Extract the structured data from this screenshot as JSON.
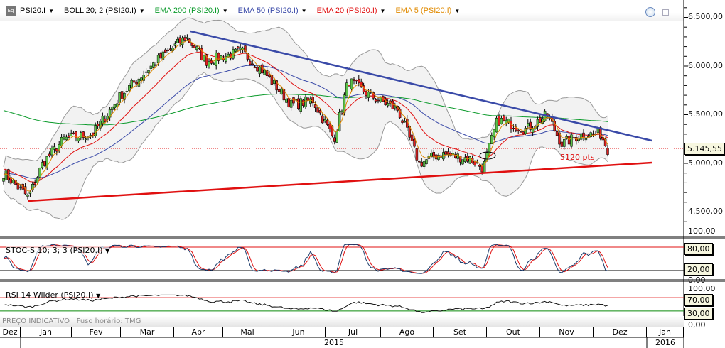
{
  "legend": {
    "symbol": "PSI20.I",
    "boll": "BOLL 20; 2 (PSI20.I)",
    "ema200": "EMA 200 (PSI20.I)",
    "ema50": "EMA 50 (PSI20.I)",
    "ema20": "EMA 20 (PSI20.I)",
    "ema5": "EMA 5 (PSI20.I)",
    "icon": "Eq"
  },
  "colors": {
    "ema200": "#0a9a2a",
    "ema50": "#3a4aa8",
    "ema20": "#e01010",
    "ema5": "#e08a00",
    "up": "#5cc24a",
    "down": "#e02020",
    "trend_down": "#3a4aa8",
    "trend_up": "#e01010"
  },
  "price_axis": [
    "6.500,00",
    "6.000,00",
    "5.500,00",
    "5.000,00",
    "4.500,00"
  ],
  "last_price": "5.145,55",
  "annotation": "5120 pts",
  "stoch": {
    "label": "STOC-S 10; 3; 3 (PSI20.I)",
    "axis_top": "100,00",
    "upper": "80,00",
    "lower": "20,00",
    "axis_bottom": "0,00"
  },
  "rsi": {
    "label": "RSI 14 Wilder (PSI20.I)",
    "axis_top": "100,00",
    "upper": "70,00",
    "lower": "30,00",
    "axis_bottom": "0,00"
  },
  "footer": {
    "indicative": "PREÇO INDICATIVO",
    "timezone": "Fuso horário: TMG"
  },
  "months": [
    "Dez",
    "Jan",
    "Fev",
    "Mar",
    "Abr",
    "Mai",
    "Jun",
    "Jul",
    "Ago",
    "Set",
    "Out",
    "Nov",
    "Dez",
    "Jan"
  ],
  "years": [
    "2015",
    "2016"
  ],
  "chart_data": {
    "type": "candlestick",
    "ylim": [
      4300,
      6650
    ],
    "close_keypoints": [
      4900,
      4650,
      5000,
      5250,
      5300,
      5700,
      6050,
      6300,
      6050,
      6150,
      5950,
      5600,
      5650,
      5250,
      5850,
      5700,
      5550,
      5000,
      5100,
      5050,
      4950,
      5450,
      5350,
      5500,
      5200,
      5300,
      5300,
      5145
    ]
  }
}
